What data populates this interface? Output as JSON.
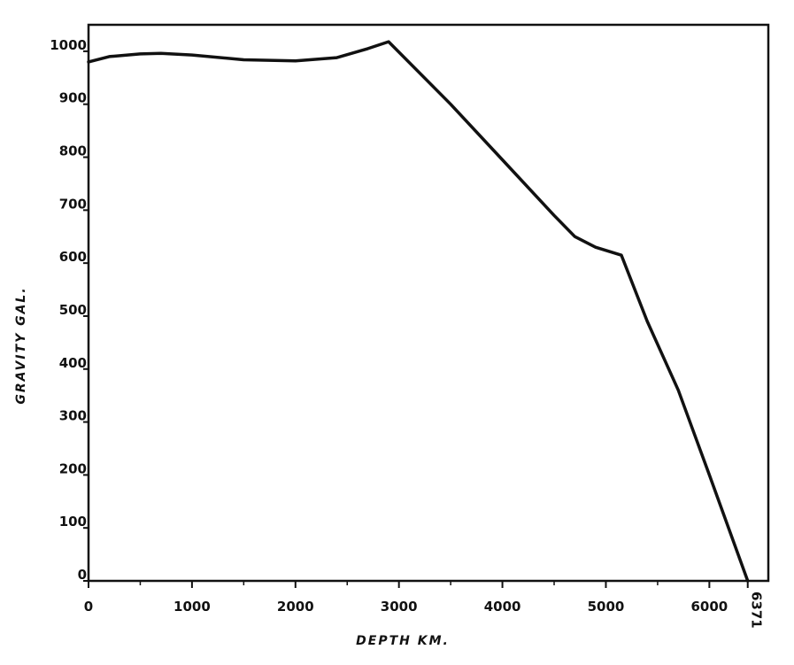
{
  "chart_data": {
    "type": "line",
    "title": "",
    "xlabel": "DEPTH  KM.",
    "ylabel": "GRAVITY  GAL.",
    "xlim": [
      0,
      6570
    ],
    "ylim": [
      0,
      1050
    ],
    "x_ticks": [
      0,
      1000,
      2000,
      3000,
      4000,
      5000,
      6000
    ],
    "x_tick_labels": [
      "0",
      "1000",
      "2000",
      "3000",
      "4000",
      "5000",
      "6000"
    ],
    "x_extra_tick": {
      "value": 6371,
      "label": "6371"
    },
    "y_ticks": [
      0,
      100,
      200,
      300,
      400,
      500,
      600,
      700,
      800,
      900,
      1000
    ],
    "y_tick_labels": [
      "0",
      "100",
      "200",
      "300",
      "400",
      "500",
      "600",
      "700",
      "800",
      "900",
      "1000"
    ],
    "grid": false,
    "series": [
      {
        "x": [
          0,
          200,
          500,
          700,
          1000,
          1500,
          2000,
          2400,
          2700,
          2900,
          3500,
          4000,
          4500,
          4700,
          4900,
          5150,
          5400,
          5700,
          6000,
          6371
        ],
        "y": [
          980,
          990,
          995,
          996,
          993,
          984,
          982,
          988,
          1005,
          1018,
          900,
          795,
          690,
          650,
          630,
          615,
          490,
          360,
          200,
          0
        ]
      }
    ]
  }
}
